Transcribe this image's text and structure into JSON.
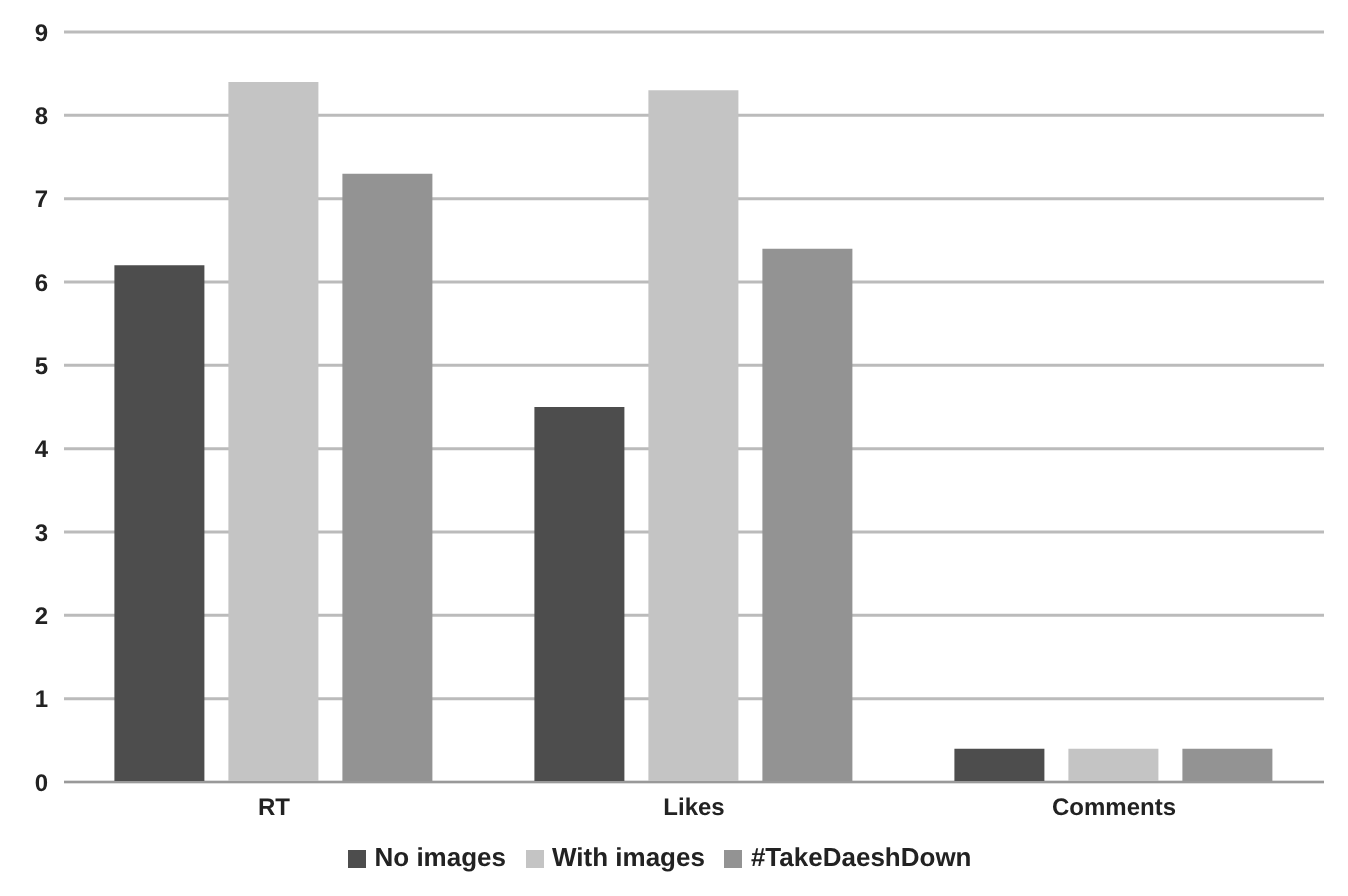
{
  "chart_data": {
    "type": "bar",
    "categories": [
      "RT",
      "Likes",
      "Comments"
    ],
    "series": [
      {
        "name": "No images",
        "color": "#4d4d4d",
        "values": [
          6.2,
          4.5,
          0.4
        ]
      },
      {
        "name": "With images",
        "color": "#c4c4c4",
        "values": [
          8.4,
          8.3,
          0.4
        ]
      },
      {
        "name": "#TakeDaeshDown",
        "color": "#939393",
        "values": [
          7.3,
          6.4,
          0.4
        ]
      }
    ],
    "ylim": [
      0,
      9
    ],
    "yticks": [
      0,
      1,
      2,
      3,
      4,
      5,
      6,
      7,
      8,
      9
    ],
    "grid": "y",
    "legend": "bottom"
  }
}
